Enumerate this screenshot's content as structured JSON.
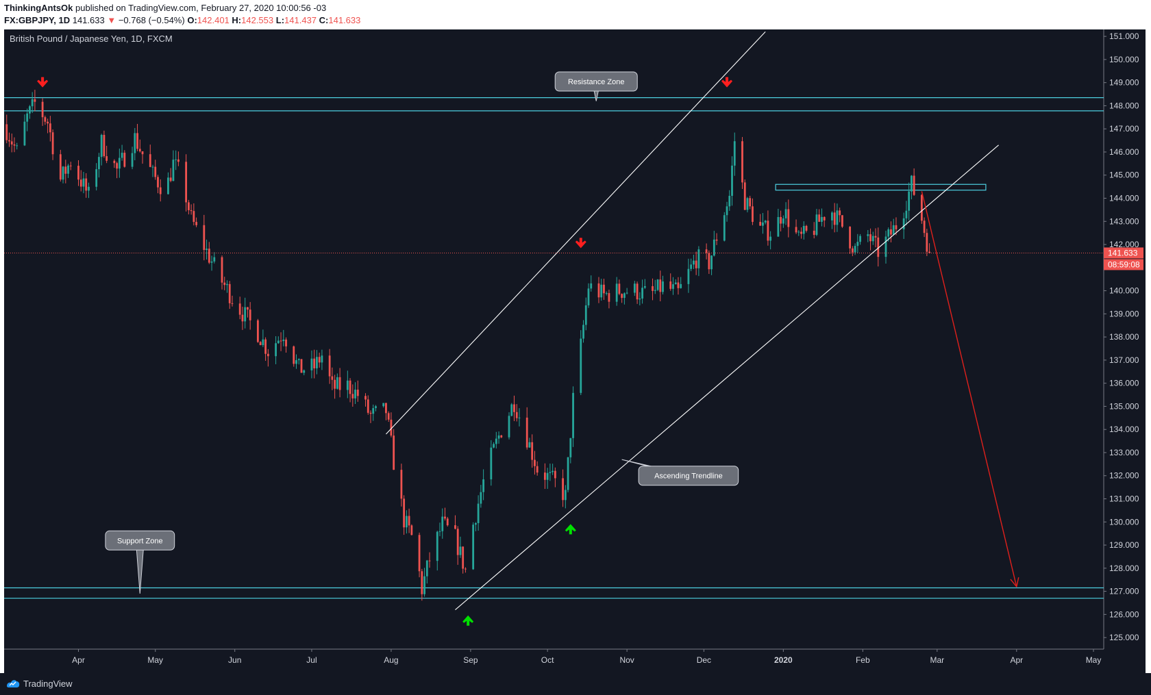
{
  "header": {
    "publisher": "ThinkingAntsOk",
    "published_text": "published on TradingView.com, February 27, 2020 10:00:56 -03",
    "symbol": "FX:GBPJPY, 1D",
    "last": "141.633",
    "change_arrow": "▼",
    "change": "−0.768 (−0.54%)",
    "o_label": "O:",
    "o": "142.401",
    "h_label": "H:",
    "h": "142.553",
    "l_label": "L:",
    "l": "141.437",
    "c_label": "C:",
    "c": "141.633"
  },
  "footer": {
    "brand": "TradingView",
    "logo_icon": "tradingview-logo-icon"
  },
  "colors": {
    "background": "#131722",
    "up": "#26a69a",
    "down": "#ef5350",
    "zone": "#4dd0e1",
    "trend": "#ffffff",
    "arrow_down": "#ff1f1f",
    "arrow_up": "#00e000",
    "projection": "#e0201c",
    "price_badge": "#ef5350"
  },
  "chart_data": {
    "type": "candlestick",
    "title": "British Pound / Japanese Yen, 1D, FXCM",
    "ylim": [
      124.5,
      151.3
    ],
    "y_ticks": [
      "125.000",
      "126.000",
      "127.000",
      "128.000",
      "129.000",
      "130.000",
      "131.000",
      "132.000",
      "133.000",
      "134.000",
      "135.000",
      "136.000",
      "137.000",
      "138.000",
      "139.000",
      "140.000",
      "142.000",
      "143.000",
      "144.000",
      "145.000",
      "146.000",
      "147.000",
      "148.000",
      "149.000",
      "150.000",
      "151.000"
    ],
    "x_ticks": [
      {
        "label": "Apr",
        "date": "2019-04-01"
      },
      {
        "label": "May",
        "date": "2019-05-01"
      },
      {
        "label": "Jun",
        "date": "2019-06-01"
      },
      {
        "label": "Jul",
        "date": "2019-07-01"
      },
      {
        "label": "Aug",
        "date": "2019-08-01"
      },
      {
        "label": "Sep",
        "date": "2019-09-01"
      },
      {
        "label": "Oct",
        "date": "2019-10-01"
      },
      {
        "label": "Nov",
        "date": "2019-11-01"
      },
      {
        "label": "Dec",
        "date": "2019-12-01"
      },
      {
        "label": "2020",
        "date": "2020-01-01"
      },
      {
        "label": "Feb",
        "date": "2020-02-01"
      },
      {
        "label": "Mar",
        "date": "2020-03-01"
      },
      {
        "label": "Apr",
        "date": "2020-04-01"
      },
      {
        "label": "May",
        "date": "2020-05-01"
      }
    ],
    "x_range": [
      "2019-03-03",
      "2020-05-05"
    ],
    "last_price": {
      "label": "141.633",
      "value": 141.633,
      "countdown": "08:59:08"
    },
    "zones": [
      {
        "name": "resistance",
        "top": 148.35,
        "bottom": 147.78
      },
      {
        "name": "support",
        "top": 127.15,
        "bottom": 126.7
      }
    ],
    "range_box": {
      "x0": "2019-12-29",
      "x1": "2020-03-20",
      "top": 144.6,
      "bottom": 144.35
    },
    "trendlines": [
      {
        "name": "channel-upper",
        "p1": {
          "x": "2019-07-30",
          "y": 133.8
        },
        "p2": {
          "x": "2019-12-25",
          "y": 151.2
        }
      },
      {
        "name": "ascending-trendline",
        "p1": {
          "x": "2019-08-26",
          "y": 126.2
        },
        "p2": {
          "x": "2020-03-25",
          "y": 146.3
        }
      }
    ],
    "projection": {
      "p1": {
        "x": "2020-02-24",
        "y": 144.3
      },
      "p2": {
        "x": "2020-04-01",
        "y": 127.2
      }
    },
    "callouts": [
      {
        "text": "Resistance Zone",
        "x": "2019-10-20",
        "y": 149.05,
        "tip_x": "2019-10-20",
        "tip_y": 148.2
      },
      {
        "text": "Support Zone",
        "x": "2019-04-25",
        "y": 129.2,
        "tip_x": "2019-04-25",
        "tip_y": 126.9
      },
      {
        "text": "Ascending Trendline",
        "x": "2019-11-25",
        "y": 132.0,
        "tip_x": "2019-10-30",
        "tip_y": 132.7
      }
    ],
    "markers": [
      {
        "kind": "down",
        "x": "2019-03-18",
        "y": 149.0
      },
      {
        "kind": "down",
        "x": "2019-10-14",
        "y": 142.05
      },
      {
        "kind": "down",
        "x": "2019-12-10",
        "y": 149.0
      },
      {
        "kind": "up",
        "x": "2019-08-31",
        "y": 125.75
      },
      {
        "kind": "up",
        "x": "2019-10-10",
        "y": 129.7
      }
    ],
    "path": [
      [
        "2019-03-03",
        147.2
      ],
      [
        "2019-03-08",
        146.0
      ],
      [
        "2019-03-12",
        147.5
      ],
      [
        "2019-03-15",
        148.1
      ],
      [
        "2019-03-20",
        147.3
      ],
      [
        "2019-03-25",
        144.8
      ],
      [
        "2019-03-29",
        145.6
      ],
      [
        "2019-04-05",
        144.1
      ],
      [
        "2019-04-10",
        146.4
      ],
      [
        "2019-04-16",
        145.2
      ],
      [
        "2019-04-23",
        146.6
      ],
      [
        "2019-04-30",
        145.0
      ],
      [
        "2019-05-05",
        144.3
      ],
      [
        "2019-05-08",
        145.5
      ],
      [
        "2019-05-11",
        145.0
      ],
      [
        "2019-05-15",
        143.1
      ],
      [
        "2019-05-21",
        141.7
      ],
      [
        "2019-05-27",
        140.4
      ],
      [
        "2019-06-03",
        139.2
      ],
      [
        "2019-06-10",
        138.2
      ],
      [
        "2019-06-14",
        137.4
      ],
      [
        "2019-06-20",
        138.2
      ],
      [
        "2019-06-26",
        136.6
      ],
      [
        "2019-07-02",
        136.7
      ],
      [
        "2019-07-05",
        137.2
      ],
      [
        "2019-07-09",
        135.8
      ],
      [
        "2019-07-15",
        135.9
      ],
      [
        "2019-07-19",
        135.5
      ],
      [
        "2019-07-24",
        134.6
      ],
      [
        "2019-07-30",
        134.8
      ],
      [
        "2019-08-02",
        132.6
      ],
      [
        "2019-08-06",
        130.1
      ],
      [
        "2019-08-10",
        129.1
      ],
      [
        "2019-08-13",
        127.1
      ],
      [
        "2019-08-16",
        128.4
      ],
      [
        "2019-08-21",
        129.9
      ],
      [
        "2019-08-26",
        129.3
      ],
      [
        "2019-08-30",
        127.9
      ],
      [
        "2019-09-02",
        129.9
      ],
      [
        "2019-09-07",
        132.2
      ],
      [
        "2019-09-13",
        134.0
      ],
      [
        "2019-09-18",
        135.2
      ],
      [
        "2019-09-22",
        134.0
      ],
      [
        "2019-09-27",
        132.3
      ],
      [
        "2019-10-04",
        131.7
      ],
      [
        "2019-10-08",
        131.1
      ],
      [
        "2019-10-11",
        135.3
      ],
      [
        "2019-10-14",
        137.6
      ],
      [
        "2019-10-17",
        140.2
      ],
      [
        "2019-10-23",
        139.8
      ],
      [
        "2019-10-29",
        140.0
      ],
      [
        "2019-11-04",
        140.0
      ],
      [
        "2019-11-10",
        139.8
      ],
      [
        "2019-11-15",
        140.2
      ],
      [
        "2019-11-21",
        139.9
      ],
      [
        "2019-11-28",
        141.4
      ],
      [
        "2019-12-03",
        141.2
      ],
      [
        "2019-12-08",
        143.1
      ],
      [
        "2019-12-11",
        144.1
      ],
      [
        "2019-12-13",
        146.5
      ],
      [
        "2019-12-17",
        143.9
      ],
      [
        "2019-12-23",
        142.7
      ],
      [
        "2019-12-28",
        142.5
      ],
      [
        "2020-01-01",
        143.5
      ],
      [
        "2020-01-07",
        142.2
      ],
      [
        "2020-01-13",
        142.7
      ],
      [
        "2020-01-19",
        143.6
      ],
      [
        "2020-01-24",
        142.8
      ],
      [
        "2020-01-29",
        141.8
      ],
      [
        "2020-02-03",
        142.4
      ],
      [
        "2020-02-07",
        141.7
      ],
      [
        "2020-02-11",
        142.3
      ],
      [
        "2020-02-16",
        143.2
      ],
      [
        "2020-02-20",
        144.6
      ],
      [
        "2020-02-23",
        143.6
      ],
      [
        "2020-02-27",
        141.633
      ]
    ]
  }
}
